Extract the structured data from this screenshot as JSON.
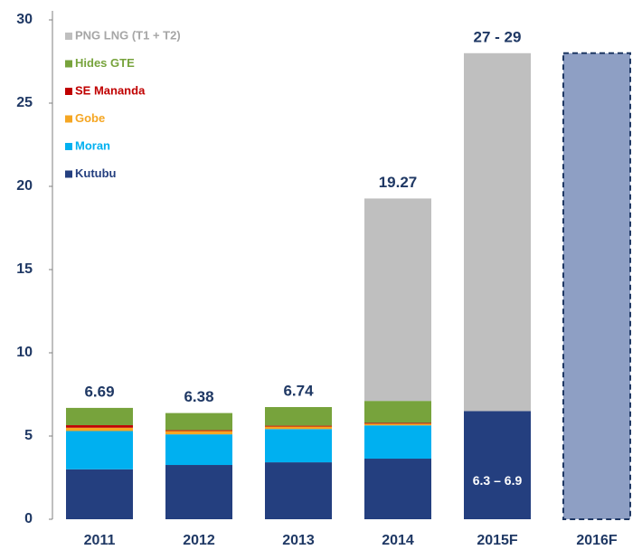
{
  "chart_data": {
    "type": "stacked-bar",
    "categories": [
      "2011",
      "2012",
      "2013",
      "2014",
      "2015F",
      "2016F"
    ],
    "series": [
      {
        "name": "Kutubu",
        "color": "#243f7f",
        "values": [
          3.0,
          3.26,
          3.42,
          3.64,
          6.5,
          null
        ],
        "value_labels": [
          null,
          null,
          null,
          null,
          "6.3 – 6.9",
          null
        ]
      },
      {
        "name": "Moran",
        "color": "#00b0f0",
        "values": [
          2.3,
          1.84,
          2.0,
          2.0,
          null,
          null
        ]
      },
      {
        "name": "Gobe",
        "color": "#f5a623",
        "values": [
          0.2,
          0.2,
          0.15,
          0.1,
          null,
          null
        ]
      },
      {
        "name": "SE Mananda",
        "color": "#c00000",
        "values": [
          0.15,
          0.05,
          0.05,
          0.05,
          null,
          null
        ]
      },
      {
        "name": "Hides GTE",
        "color": "#77a33c",
        "values": [
          1.04,
          1.03,
          1.12,
          1.32,
          null,
          null
        ]
      },
      {
        "name": "PNG LNG (T1 + T2)",
        "color": "#bfbfbf",
        "values": [
          null,
          null,
          null,
          12.16,
          21.5,
          null
        ]
      },
      {
        "color": "#8e9fc4",
        "dashed": true,
        "values": [
          null,
          null,
          null,
          null,
          null,
          28
        ]
      }
    ],
    "totals": {
      "values": [
        6.69,
        6.38,
        6.74,
        19.27,
        28,
        null
      ],
      "value_labels": [
        "6.69",
        "6.38",
        "6.74",
        "19.27",
        "27 - 29",
        null
      ]
    },
    "ylim": [
      0,
      30
    ],
    "yticks": [
      0,
      5,
      10,
      15,
      20,
      25,
      30
    ]
  }
}
